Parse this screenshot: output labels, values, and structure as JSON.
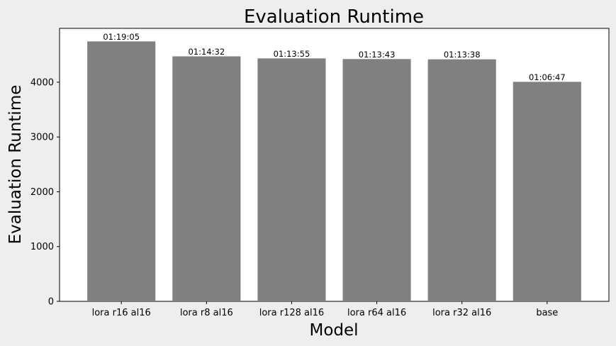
{
  "chart_data": {
    "type": "bar",
    "title": "Evaluation Runtime",
    "xlabel": "Model",
    "ylabel": "Evaluation Runtime",
    "categories": [
      "lora r16 al16",
      "lora r8 al16",
      "lora r128 al16",
      "lora r64 al16",
      "lora r32 al16",
      "base"
    ],
    "values": [
      4745,
      4472,
      4435,
      4423,
      4418,
      4007
    ],
    "data_labels": [
      "01:19:05",
      "01:14:32",
      "01:13:55",
      "01:13:43",
      "01:13:38",
      "01:06:47"
    ],
    "yticks": [
      0,
      1000,
      2000,
      3000,
      4000
    ],
    "ylim": [
      0,
      4983
    ],
    "grid": false,
    "colors": {
      "bar": "#808080",
      "plot_background": "#ffffff",
      "figure_background": "#eeeeee",
      "axis": "#000000"
    }
  }
}
